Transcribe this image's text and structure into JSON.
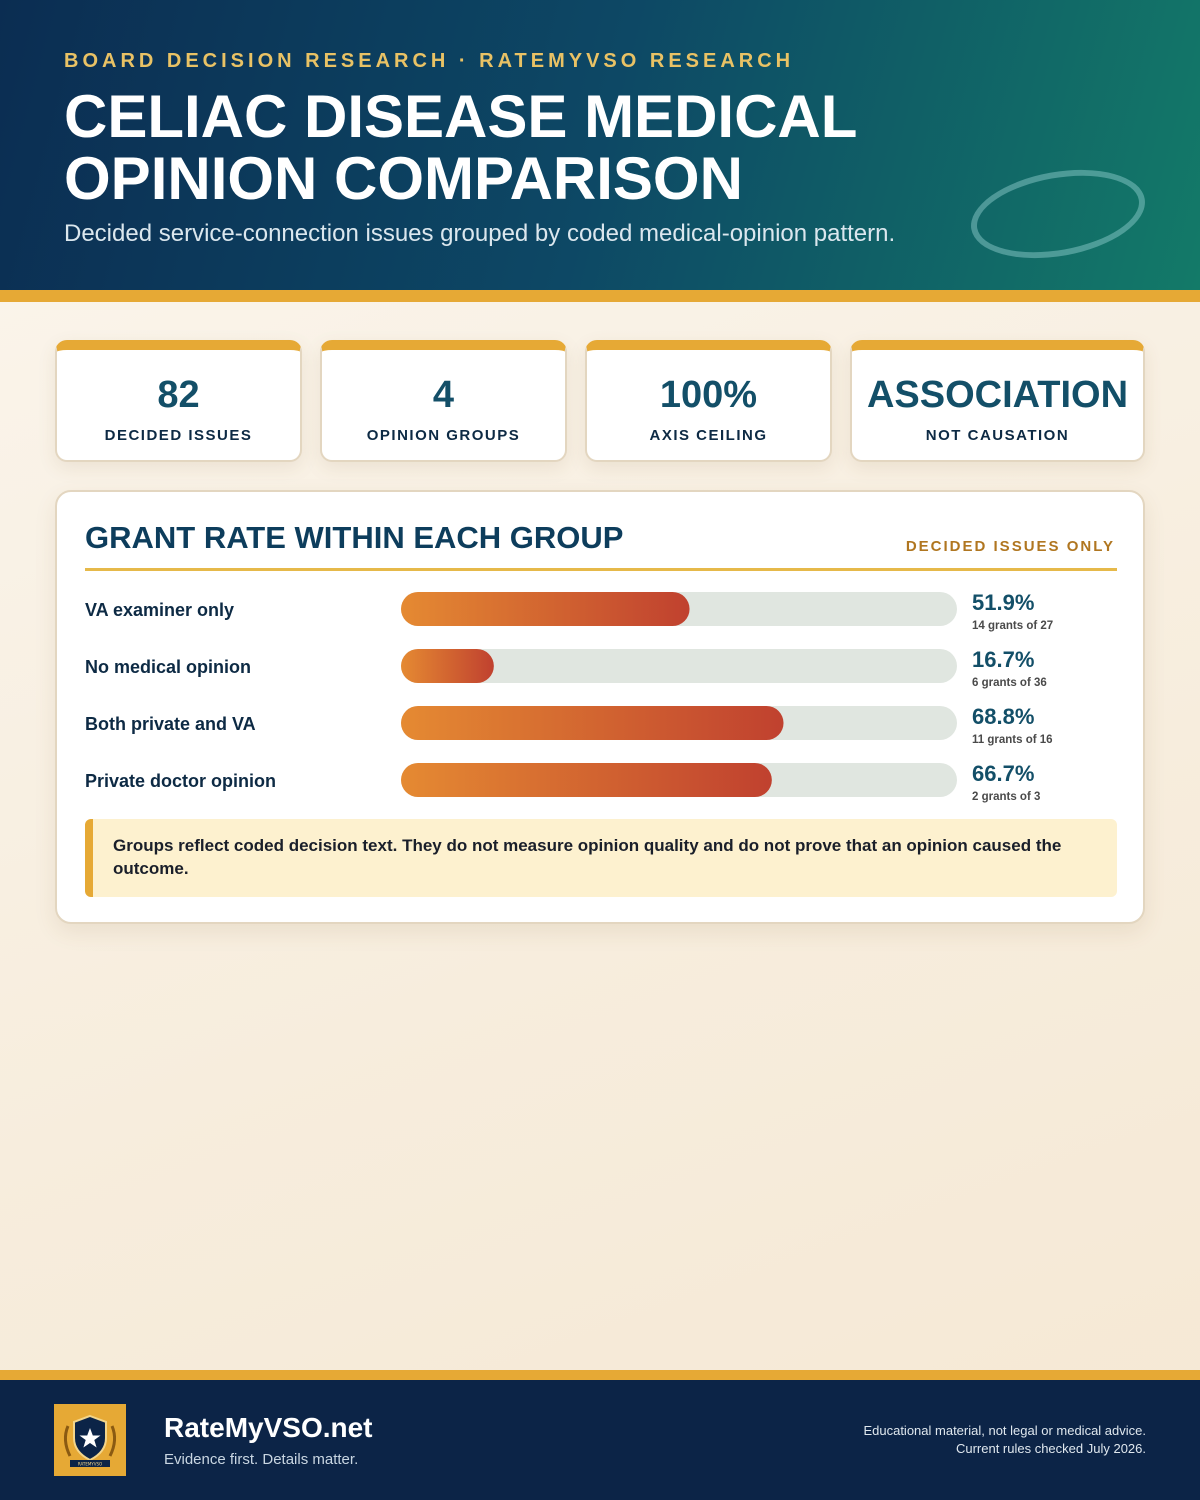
{
  "header": {
    "kicker": "BOARD DECISION RESEARCH · RATEMYVSO RESEARCH",
    "title": "CELIAC DISEASE MEDICAL OPINION COMPARISON",
    "subtitle": "Decided service-connection issues grouped by coded medical-opinion pattern."
  },
  "stats": [
    {
      "value": "82",
      "label": "DECIDED ISSUES"
    },
    {
      "value": "4",
      "label": "OPINION GROUPS"
    },
    {
      "value": "100%",
      "label": "AXIS CEILING"
    },
    {
      "value": "ASSOCIATION",
      "label": "NOT CAUSATION"
    }
  ],
  "panel": {
    "title": "GRANT RATE WITHIN EACH GROUP",
    "note": "DECIDED ISSUES ONLY",
    "callout": "Groups reflect coded decision text. They do not measure opinion quality and do not prove that an opinion caused the outcome."
  },
  "chart_data": {
    "type": "bar",
    "orientation": "horizontal",
    "title": "GRANT RATE WITHIN EACH GROUP",
    "categories": [
      "VA examiner only",
      "No medical opinion",
      "Both private and VA",
      "Private doctor opinion"
    ],
    "values": [
      51.9,
      16.7,
      68.8,
      66.7
    ],
    "value_labels": [
      "51.9%",
      "16.7%",
      "68.8%",
      "66.7%"
    ],
    "detail_labels": [
      "14 grants of 27",
      "6 grants of 36",
      "11 grants of 16",
      "2 grants of 3"
    ],
    "xlim": [
      0,
      100
    ],
    "grid": false,
    "colors": {
      "bar_start": "#e58a32",
      "bar_end": "#c0412f",
      "track": "#e0e6e0",
      "value_text": "#134f68"
    }
  },
  "footer": {
    "brand": "RateMyVSO.net",
    "tagline": "Evidence first. Details matter.",
    "disclaimer_line1": "Educational material, not legal or medical advice.",
    "disclaimer_line2": "Current rules checked July 2026.",
    "logo_text": "RATEMYVSO"
  }
}
